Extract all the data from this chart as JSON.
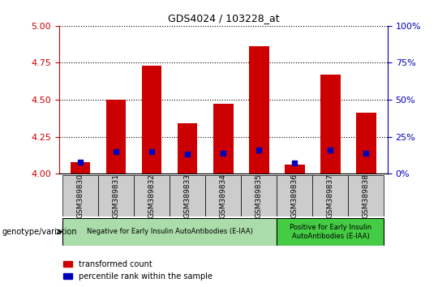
{
  "title": "GDS4024 / 103228_at",
  "samples": [
    "GSM389830",
    "GSM389831",
    "GSM389832",
    "GSM389833",
    "GSM389834",
    "GSM389835",
    "GSM389836",
    "GSM389837",
    "GSM389838"
  ],
  "transformed_count": [
    4.08,
    4.5,
    4.73,
    4.34,
    4.47,
    4.86,
    4.06,
    4.67,
    4.41
  ],
  "percentile_rank": [
    8,
    15,
    15,
    13,
    14,
    16,
    7,
    16,
    14
  ],
  "ylim_left": [
    4.0,
    5.0
  ],
  "ylim_right": [
    0,
    100
  ],
  "left_ticks": [
    4.0,
    4.25,
    4.5,
    4.75,
    5.0
  ],
  "right_ticks": [
    0,
    25,
    50,
    75,
    100
  ],
  "bar_color": "#CC0000",
  "dot_color": "#0000BB",
  "group1_label": "Negative for Early Insulin AutoAntibodies (E-IAA)",
  "group2_label": "Positive for Early Insulin\nAutoAntibodies (E-IAA)",
  "group1_color": "#AADDAA",
  "group2_color": "#44CC44",
  "legend_red": "transformed count",
  "legend_blue": "percentile rank within the sample",
  "genotype_label": "genotype/variation",
  "bar_width": 0.55,
  "baseline": 4.0,
  "tick_bg_color": "#CCCCCC",
  "tick_fontsize": 6.5,
  "group_fontsize": 6.0,
  "axis_fontsize": 8
}
